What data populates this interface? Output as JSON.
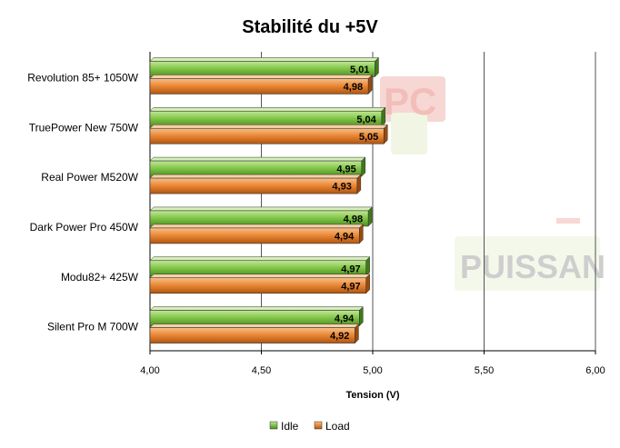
{
  "watermark": {
    "line1": "PC",
    "line2": "PUISSAN"
  },
  "chart_data": {
    "type": "bar",
    "orientation": "horizontal",
    "title": "Stabilité du +5V",
    "xlabel": "Tension (V)",
    "ylabel": "",
    "categories": [
      "Revolution 85+ 1050W",
      "TruePower New 750W",
      "Real Power M520W",
      "Dark Power Pro 450W",
      "Modu82+ 425W",
      "Silent Pro M 700W"
    ],
    "series": [
      {
        "name": "Idle",
        "color": "#7dc242",
        "values": [
          5.01,
          5.04,
          4.95,
          4.98,
          4.97,
          4.94
        ],
        "labels": [
          "5,01",
          "5,04",
          "4,95",
          "4,98",
          "4,97",
          "4,94"
        ]
      },
      {
        "name": "Load",
        "color": "#e8822c",
        "values": [
          4.98,
          5.05,
          4.93,
          4.94,
          4.97,
          4.92
        ],
        "labels": [
          "4,98",
          "5,05",
          "4,93",
          "4,94",
          "4,97",
          "4,92"
        ]
      }
    ],
    "xlim": [
      4.0,
      6.0
    ],
    "ticks": [
      4.0,
      4.5,
      5.0,
      5.5,
      6.0
    ],
    "tick_labels": [
      "4,00",
      "4,50",
      "5,00",
      "5,50",
      "6,00"
    ],
    "grid": true,
    "legend_position": "bottom"
  }
}
